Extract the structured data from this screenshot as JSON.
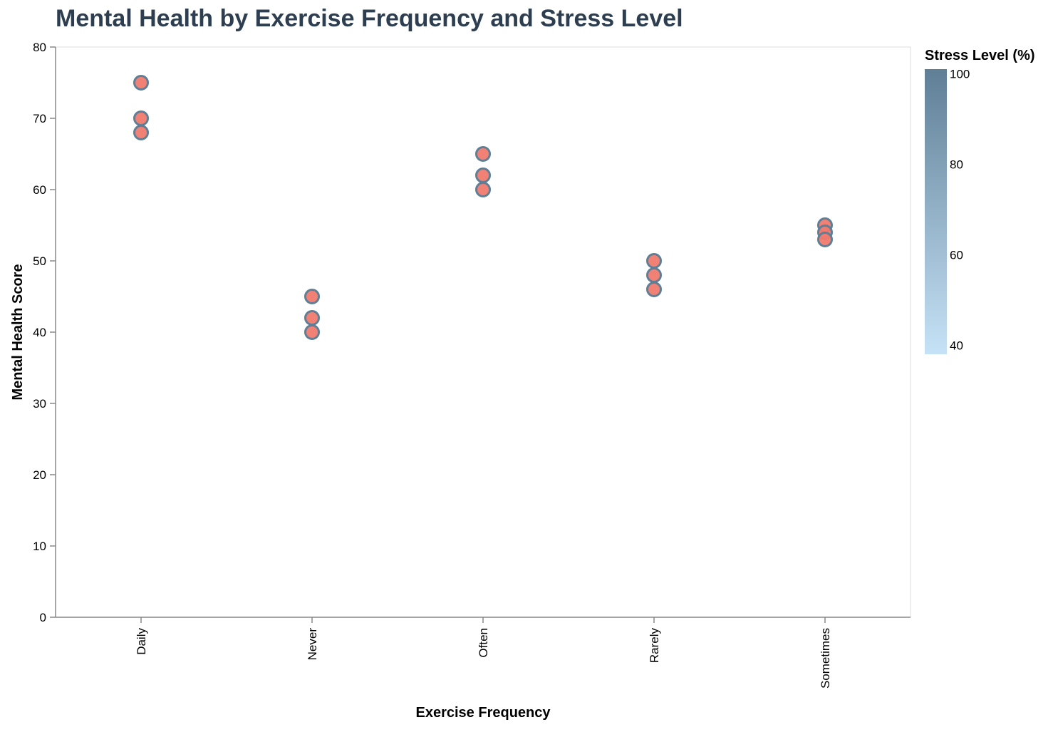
{
  "chart_data": {
    "type": "scatter",
    "title": "Mental Health by Exercise Frequency and Stress Level",
    "xlabel": "Exercise Frequency",
    "ylabel": "Mental Health Score",
    "categories": [
      "Daily",
      "Never",
      "Often",
      "Rarely",
      "Sometimes"
    ],
    "ylim": [
      0,
      80
    ],
    "yticks": [
      0,
      10,
      20,
      30,
      40,
      50,
      60,
      70,
      80
    ],
    "grid": false,
    "points": [
      {
        "x": "Daily",
        "y": 75
      },
      {
        "x": "Daily",
        "y": 70
      },
      {
        "x": "Daily",
        "y": 68
      },
      {
        "x": "Never",
        "y": 45
      },
      {
        "x": "Never",
        "y": 42
      },
      {
        "x": "Never",
        "y": 40
      },
      {
        "x": "Often",
        "y": 65
      },
      {
        "x": "Often",
        "y": 62
      },
      {
        "x": "Often",
        "y": 60
      },
      {
        "x": "Rarely",
        "y": 50
      },
      {
        "x": "Rarely",
        "y": 48
      },
      {
        "x": "Rarely",
        "y": 46
      },
      {
        "x": "Sometimes",
        "y": 55
      },
      {
        "x": "Sometimes",
        "y": 54
      },
      {
        "x": "Sometimes",
        "y": 53
      }
    ],
    "legend": {
      "title": "Stress Level (%)",
      "placement": "right",
      "range": [
        38,
        101
      ],
      "ticks": [
        40,
        60,
        80,
        100
      ],
      "color_low": "#c6e2f7",
      "color_high": "#5f7f96"
    },
    "colors": {
      "point_fill": "#f07a6e",
      "point_stroke": "#5f7f96",
      "title": "#2c3e50",
      "axis": "#888888",
      "frame": "#dddddd"
    }
  }
}
